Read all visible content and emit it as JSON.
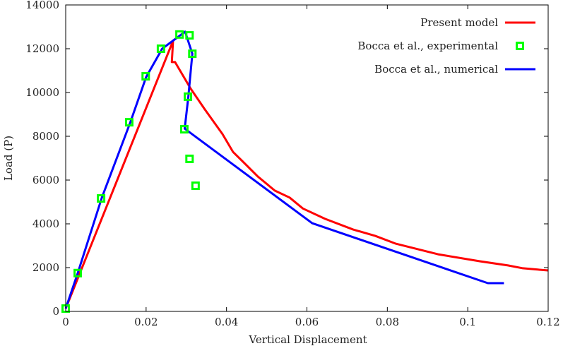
{
  "chart_data": {
    "type": "line",
    "title": "",
    "xlabel": "Vertical Displacement",
    "ylabel": "Load (P)",
    "xlim": [
      0,
      0.12
    ],
    "ylim": [
      0,
      14000
    ],
    "xticks": [
      0,
      0.02,
      0.04,
      0.06,
      0.08,
      0.1,
      0.12
    ],
    "xtick_labels": [
      "0",
      "0.02",
      "0.04",
      "0.06",
      "0.08",
      "0.1",
      "0.12"
    ],
    "yticks": [
      0,
      2000,
      4000,
      6000,
      8000,
      10000,
      12000,
      14000
    ],
    "ytick_labels": [
      "0",
      "2000",
      "4000",
      "6000",
      "8000",
      "10000",
      "12000",
      "14000"
    ],
    "grid": false,
    "legend_position": "top-right",
    "series": [
      {
        "name": "Present model",
        "style": "line",
        "color": "#ff0000",
        "x": [
          0,
          0.0267,
          0.0264,
          0.0272,
          0.031,
          0.0346,
          0.039,
          0.0416,
          0.0443,
          0.0478,
          0.052,
          0.0557,
          0.059,
          0.0645,
          0.0715,
          0.077,
          0.082,
          0.0926,
          0.103,
          0.11,
          0.1137,
          0.12
        ],
        "y": [
          130,
          12360,
          11390,
          11390,
          10200,
          9230,
          8100,
          7290,
          6800,
          6160,
          5520,
          5200,
          4700,
          4230,
          3740,
          3450,
          3100,
          2610,
          2290,
          2100,
          1970,
          1870
        ]
      },
      {
        "name": "Bocca et al., experimental",
        "style": "marker",
        "color": "#00ff00",
        "x": [
          0,
          0.003,
          0.0088,
          0.0158,
          0.0199,
          0.0237,
          0.0283,
          0.0308,
          0.0315,
          0.0304,
          0.0295,
          0.0308,
          0.0323
        ],
        "y": [
          130,
          1750,
          5160,
          8640,
          10740,
          12000,
          12650,
          12610,
          11770,
          9810,
          8320,
          6970,
          5740
        ]
      },
      {
        "name": "Bocca et al., numerical",
        "style": "line",
        "color": "#0000ff",
        "x": [
          0,
          0.003,
          0.009,
          0.016,
          0.02,
          0.024,
          0.0297,
          0.0315,
          0.0305,
          0.0296,
          0.0613,
          0.105,
          0.109
        ],
        "y": [
          130,
          1750,
          5200,
          8600,
          10700,
          12000,
          12780,
          11770,
          9800,
          8350,
          4030,
          1290,
          1290
        ]
      }
    ]
  }
}
